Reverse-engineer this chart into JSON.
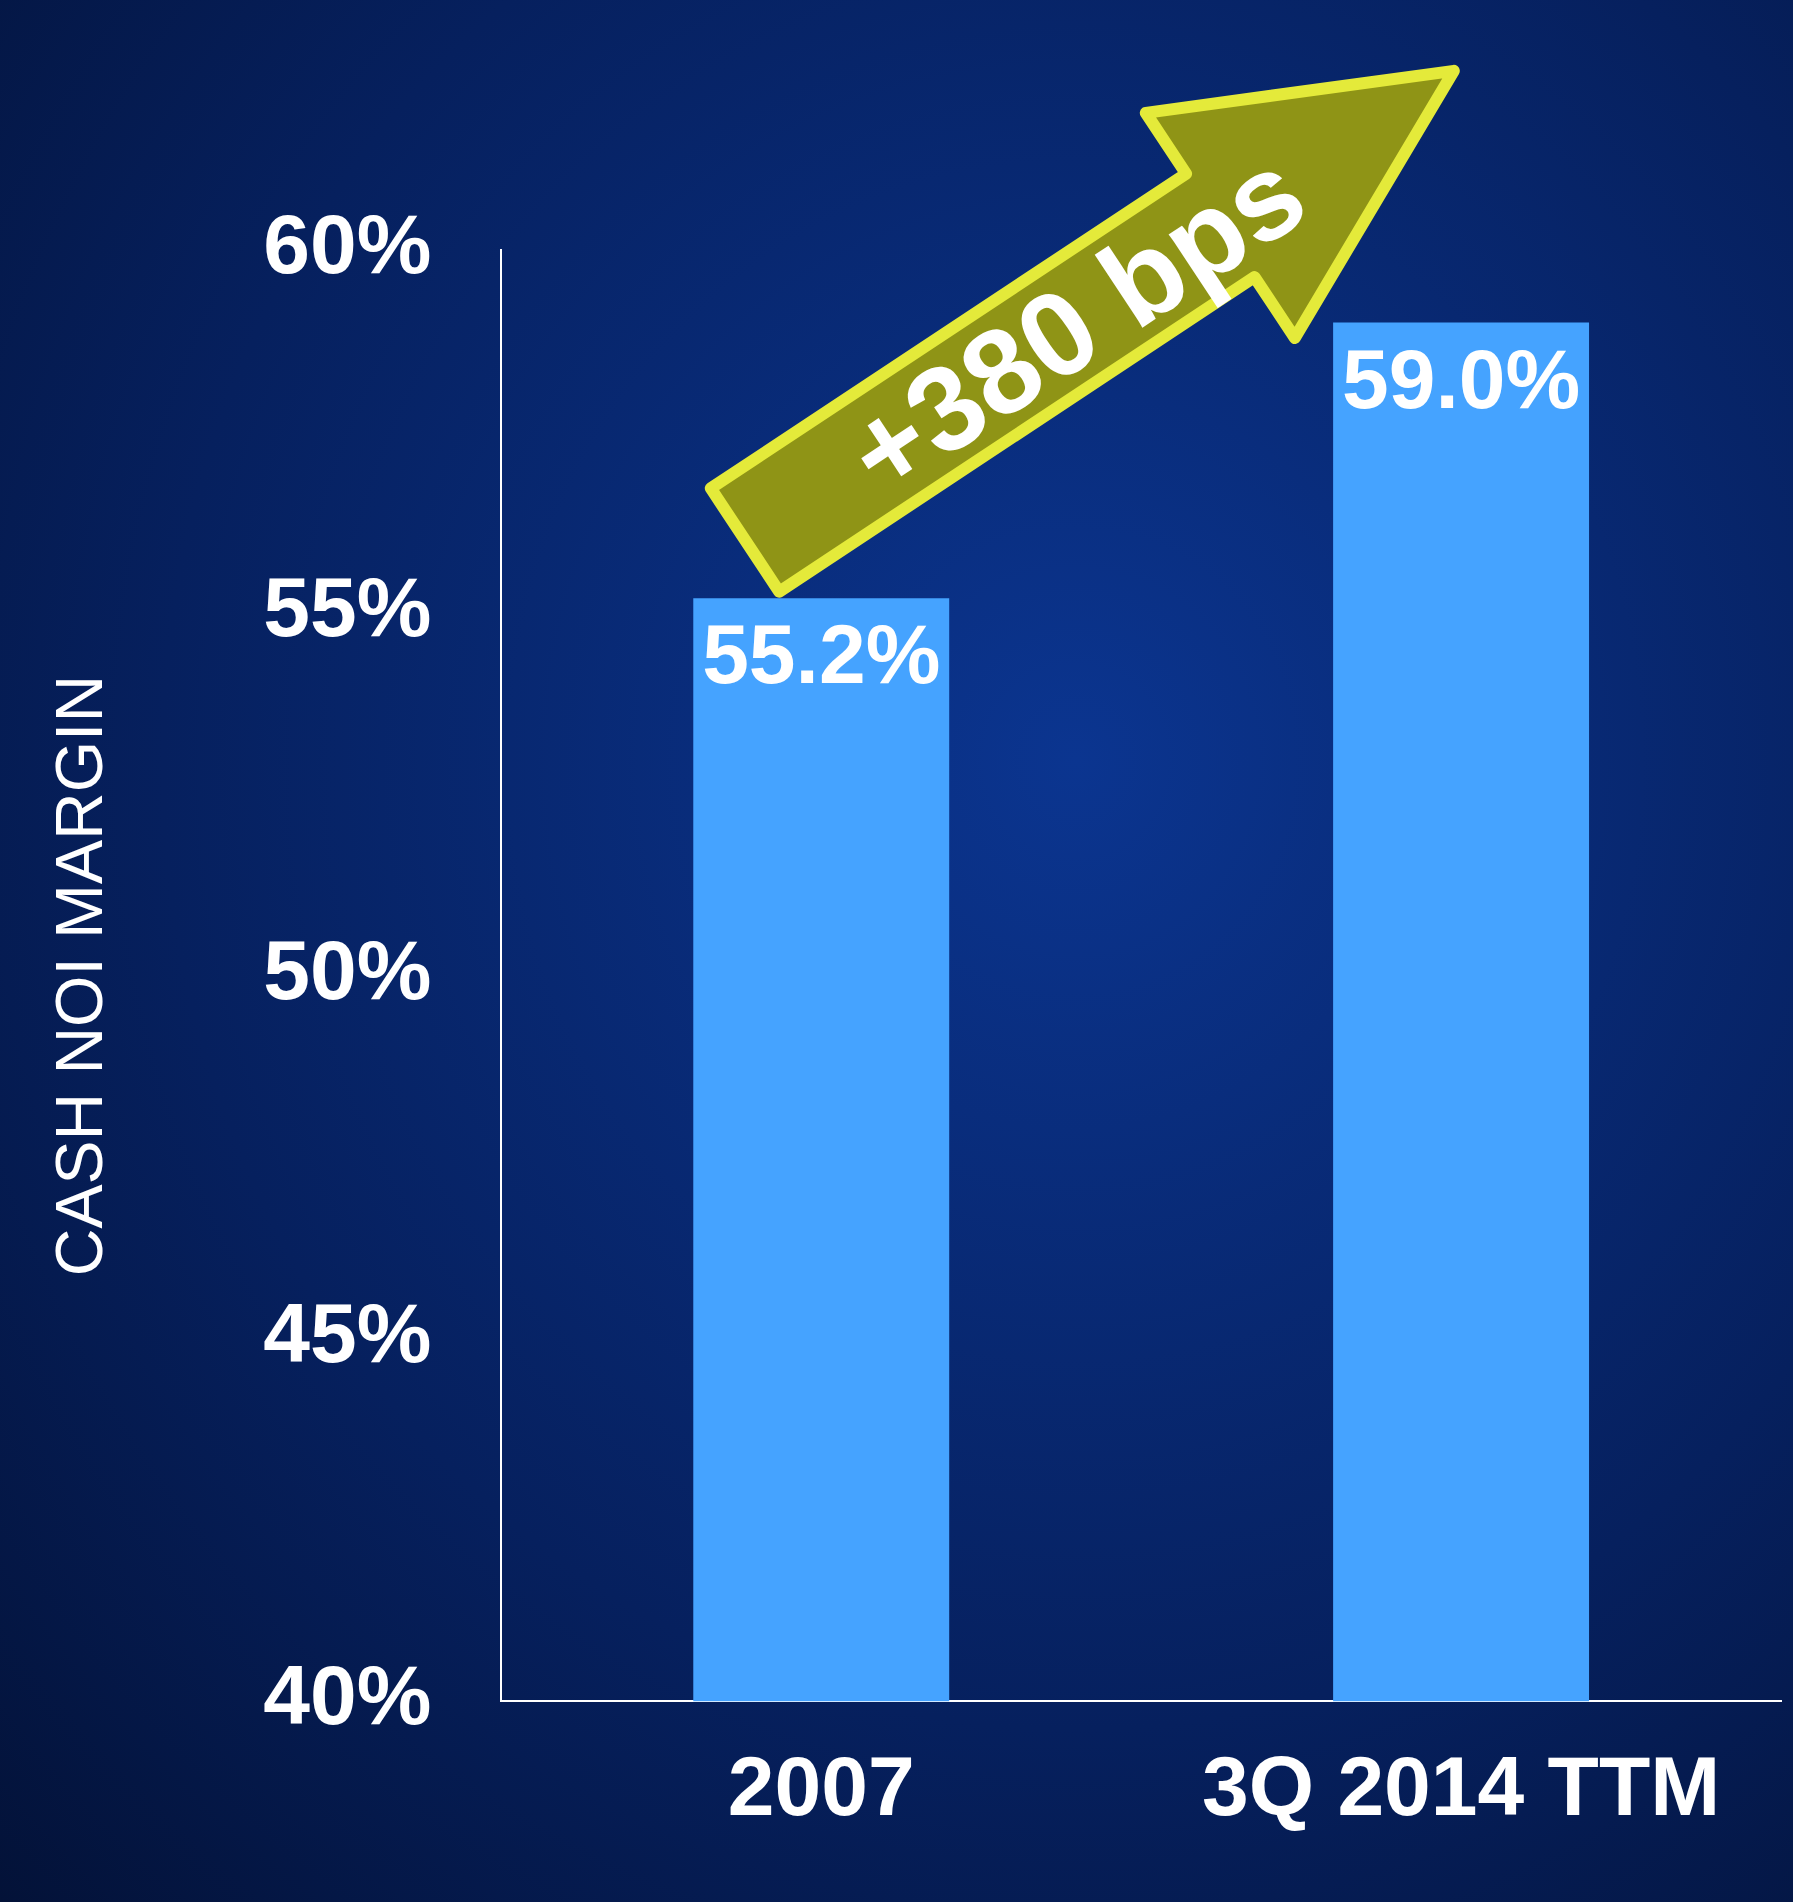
{
  "chart_data": {
    "type": "bar",
    "ylabel": "CASH NOI MARGIN",
    "categories": [
      "2007",
      "3Q 2014 TTM"
    ],
    "values": [
      55.2,
      59.0
    ],
    "value_labels": [
      "55.2%",
      "59.0%"
    ],
    "color": "#45a3ff",
    "ylim": [
      40,
      60
    ],
    "yticks": [
      {
        "value": 40,
        "label": "40%"
      },
      {
        "value": 45,
        "label": "45%"
      },
      {
        "value": 50,
        "label": "50%"
      },
      {
        "value": 55,
        "label": "55%"
      },
      {
        "value": 60,
        "label": "60%"
      }
    ],
    "grid": false,
    "legend": false,
    "annotations": [
      "+380 bps"
    ]
  }
}
